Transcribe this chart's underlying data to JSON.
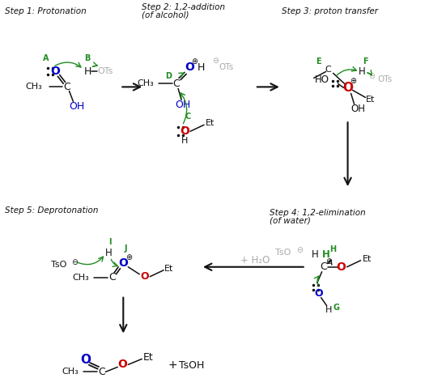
{
  "bg_color": "#ffffff",
  "step1_label": "Step 1: Protonation",
  "step2_label_1": "Step 2: 1,2-addition",
  "step2_label_2": "(of alcohol)",
  "step3_label": "Step 3: proton transfer",
  "step4_label_1": "Step 4: 1,2-elimination",
  "step4_label_2": "(of water)",
  "step5_label": "Step 5: Deprotonation",
  "color_blue": "#0000cc",
  "color_red": "#cc0000",
  "color_green": "#228B22",
  "color_gray": "#aaaaaa",
  "color_black": "#111111"
}
